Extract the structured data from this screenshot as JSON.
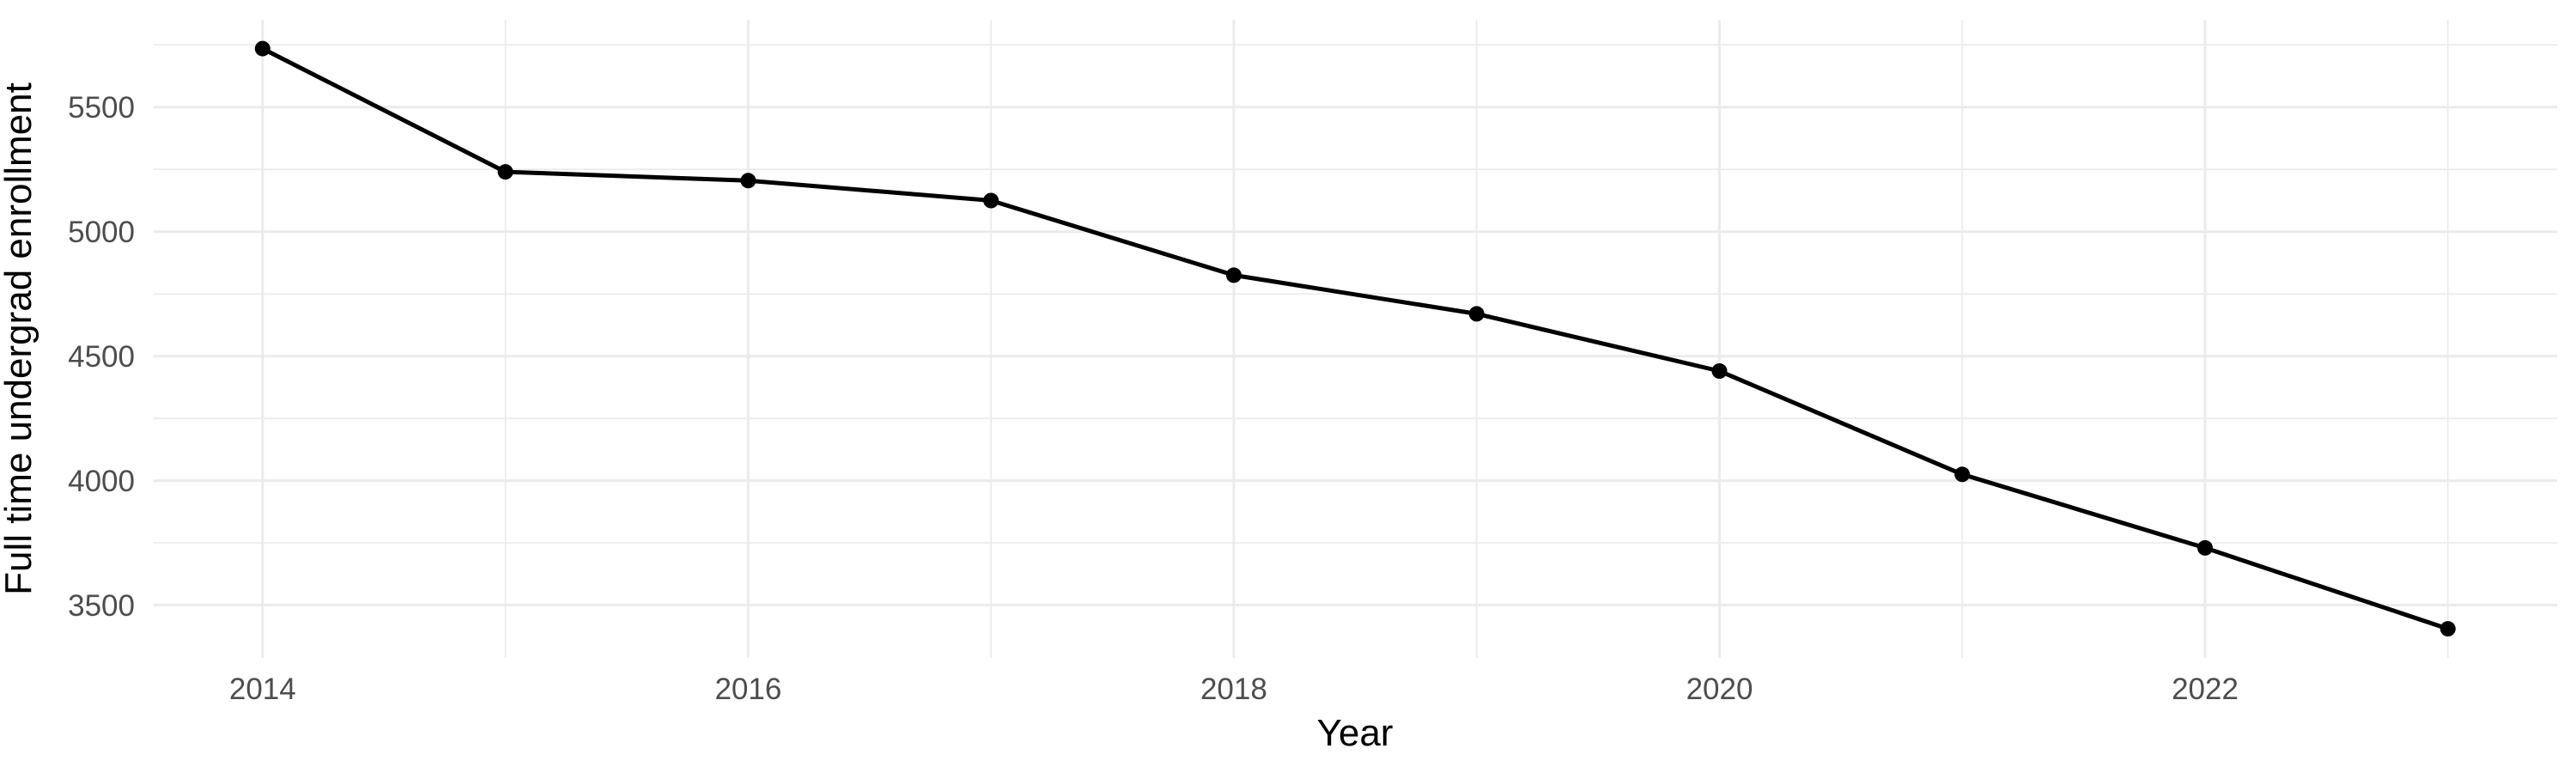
{
  "chart_data": {
    "type": "line",
    "title": "",
    "xlabel": "Year",
    "ylabel": "Full time undergrad enrollment",
    "series": [
      {
        "name": "Full time undergrad enrollment",
        "x": [
          2014,
          2015,
          2016,
          2017,
          2018,
          2019,
          2020,
          2021,
          2022,
          2023
        ],
        "values": [
          5735,
          5240,
          5205,
          5125,
          4825,
          4670,
          4440,
          4025,
          3730,
          3405
        ]
      }
    ],
    "xlim": [
      2013.55,
      2023.45
    ],
    "ylim": [
      3288,
      5851
    ],
    "x_major_ticks": [
      2014,
      2016,
      2018,
      2020,
      2022
    ],
    "x_major_tick_labels": [
      "2014",
      "2016",
      "2018",
      "2020",
      "2022"
    ],
    "x_minor_ticks": [
      2015,
      2017,
      2019,
      2021,
      2023
    ],
    "y_major_ticks": [
      3500,
      4000,
      4500,
      5000,
      5500
    ],
    "y_major_tick_labels": [
      "3500",
      "4000",
      "4500",
      "5000",
      "5500"
    ],
    "y_minor_ticks": [
      3750,
      4250,
      4750,
      5250,
      5750
    ],
    "grid": "on",
    "legend": "none",
    "marker": "point",
    "colors": {
      "line": "#000000",
      "point": "#000000",
      "grid": "#EBEBEB",
      "axis_text": "#4D4D4D",
      "axis_title": "#000000",
      "background": "#FFFFFF"
    }
  }
}
